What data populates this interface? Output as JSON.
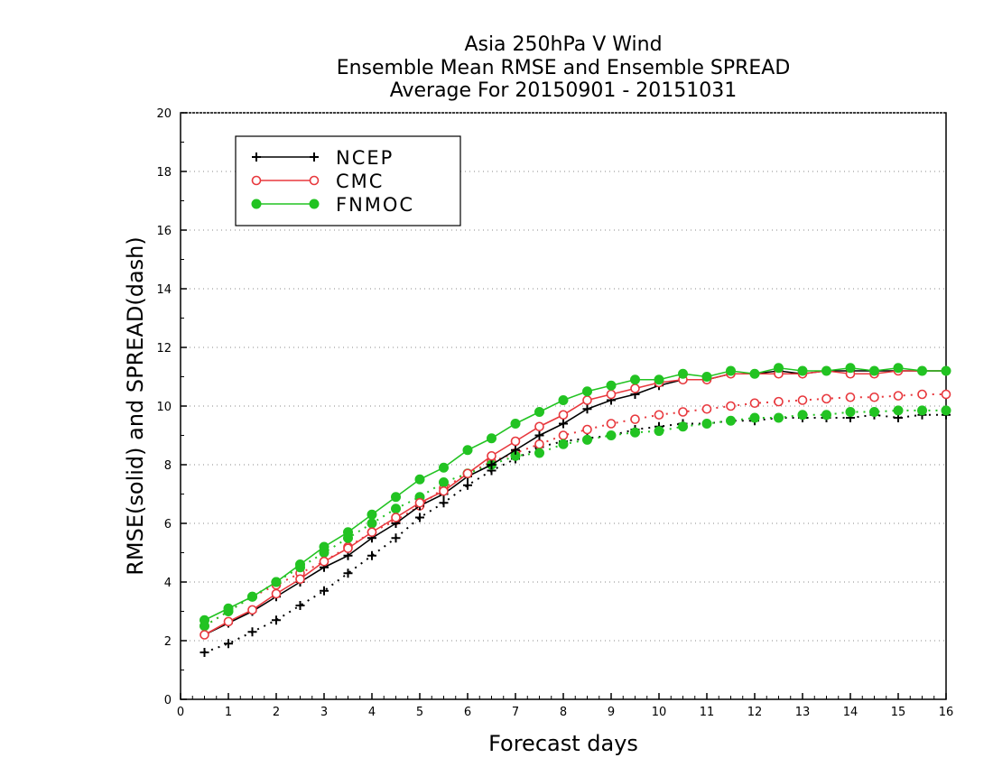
{
  "chart_data": {
    "type": "line",
    "title": [
      "Asia 250hPa V Wind",
      "Ensemble Mean RMSE and Ensemble SPREAD",
      "Average For 20150901 - 20151031"
    ],
    "xlabel": "Forecast days",
    "ylabel": "RMSE(solid) and SPREAD(dash)",
    "xlim": [
      0,
      16
    ],
    "ylim": [
      0,
      20
    ],
    "xticks": [
      0,
      1,
      2,
      3,
      4,
      5,
      6,
      7,
      8,
      9,
      10,
      11,
      12,
      13,
      14,
      15,
      16
    ],
    "yticks": [
      0,
      2,
      4,
      6,
      8,
      10,
      12,
      14,
      16,
      18,
      20
    ],
    "grid": "horizontal dotted",
    "legend_position": "top-left",
    "x": [
      0.5,
      1.0,
      1.5,
      2.0,
      2.5,
      3.0,
      3.5,
      4.0,
      4.5,
      5.0,
      5.5,
      6.0,
      6.5,
      7.0,
      7.5,
      8.0,
      8.5,
      9.0,
      9.5,
      10.0,
      10.5,
      11.0,
      11.5,
      12.0,
      12.5,
      13.0,
      13.5,
      14.0,
      14.5,
      15.0,
      15.5,
      16.0
    ],
    "series": [
      {
        "name": "NCEP",
        "kind": "RMSE",
        "style": "solid",
        "marker": "plus",
        "color": "#000000",
        "values": [
          2.2,
          2.6,
          3.0,
          3.5,
          4.0,
          4.5,
          4.9,
          5.5,
          6.0,
          6.6,
          7.0,
          7.6,
          8.0,
          8.5,
          9.0,
          9.4,
          9.9,
          10.2,
          10.4,
          10.7,
          10.9,
          10.9,
          11.1,
          11.1,
          11.2,
          11.1,
          11.2,
          11.2,
          11.2,
          11.2,
          11.2,
          11.2
        ]
      },
      {
        "name": "NCEP",
        "kind": "SPREAD",
        "style": "dotted",
        "marker": "plus",
        "color": "#000000",
        "values": [
          1.6,
          1.9,
          2.3,
          2.7,
          3.2,
          3.7,
          4.3,
          4.9,
          5.5,
          6.2,
          6.7,
          7.3,
          7.8,
          8.2,
          8.6,
          8.8,
          8.9,
          9.0,
          9.2,
          9.3,
          9.4,
          9.4,
          9.5,
          9.5,
          9.6,
          9.6,
          9.6,
          9.6,
          9.7,
          9.6,
          9.7,
          9.7
        ]
      },
      {
        "name": "CMC",
        "kind": "RMSE",
        "style": "solid",
        "marker": "open-circle",
        "color": "#e8383d",
        "values": [
          2.2,
          2.65,
          3.05,
          3.6,
          4.1,
          4.7,
          5.15,
          5.7,
          6.2,
          6.7,
          7.1,
          7.7,
          8.3,
          8.8,
          9.3,
          9.7,
          10.2,
          10.4,
          10.6,
          10.8,
          10.9,
          10.9,
          11.1,
          11.1,
          11.1,
          11.1,
          11.2,
          11.1,
          11.1,
          11.2,
          11.2,
          11.2
        ]
      },
      {
        "name": "CMC",
        "kind": "SPREAD",
        "style": "dotted",
        "marker": "open-circle",
        "color": "#e8383d",
        "values": [
          2.5,
          3.0,
          3.5,
          3.9,
          4.3,
          4.7,
          5.2,
          5.7,
          6.1,
          6.6,
          7.2,
          7.7,
          8.1,
          8.4,
          8.7,
          9.0,
          9.2,
          9.4,
          9.55,
          9.7,
          9.8,
          9.9,
          10.0,
          10.1,
          10.15,
          10.2,
          10.25,
          10.3,
          10.3,
          10.35,
          10.4,
          10.4
        ]
      },
      {
        "name": "FNMOC",
        "kind": "RMSE",
        "style": "solid",
        "marker": "filled-circle",
        "color": "#22c322",
        "values": [
          2.7,
          3.1,
          3.5,
          4.0,
          4.6,
          5.2,
          5.7,
          6.3,
          6.9,
          7.5,
          7.9,
          8.5,
          8.9,
          9.4,
          9.8,
          10.2,
          10.5,
          10.7,
          10.9,
          10.9,
          11.1,
          11.0,
          11.2,
          11.1,
          11.3,
          11.2,
          11.2,
          11.3,
          11.2,
          11.3,
          11.2,
          11.2
        ]
      },
      {
        "name": "FNMOC",
        "kind": "SPREAD",
        "style": "dotted",
        "marker": "filled-circle",
        "color": "#22c322",
        "values": [
          2.5,
          3.0,
          3.5,
          4.0,
          4.5,
          5.0,
          5.5,
          6.0,
          6.5,
          6.9,
          7.4,
          7.7,
          8.0,
          8.3,
          8.4,
          8.7,
          8.85,
          9.0,
          9.1,
          9.15,
          9.3,
          9.4,
          9.5,
          9.6,
          9.6,
          9.7,
          9.7,
          9.8,
          9.8,
          9.85,
          9.85,
          9.85
        ]
      }
    ],
    "legend": [
      {
        "label": "NCEP",
        "marker": "plus",
        "color": "#000000"
      },
      {
        "label": "CMC",
        "marker": "open-circle",
        "color": "#e8383d"
      },
      {
        "label": "FNMOC",
        "marker": "filled-circle",
        "color": "#22c322"
      }
    ]
  }
}
